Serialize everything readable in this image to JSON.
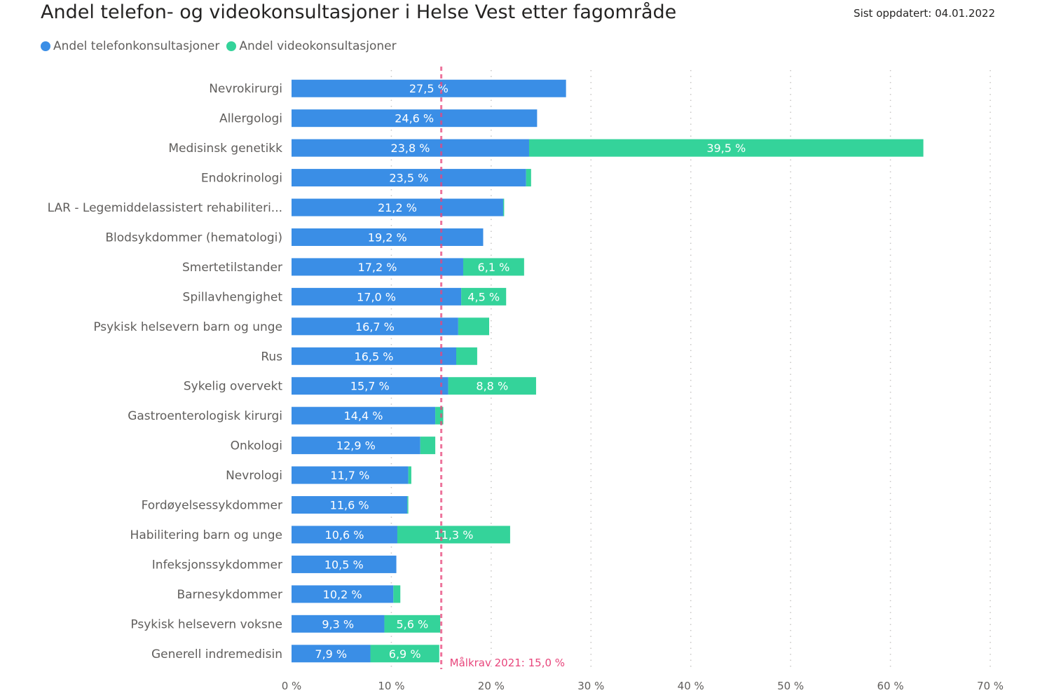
{
  "header": {
    "title": "Andel telefon- og videokonsultasjoner i Helse Vest etter fagområde",
    "updated": "Sist oppdatert: 04.01.2022"
  },
  "colors": {
    "telefon": "#3a8ee6",
    "video": "#34d39a",
    "target": "#e8467c",
    "grid": "#c8c6c4"
  },
  "chart_data": {
    "type": "bar",
    "orientation": "horizontal",
    "stacked": true,
    "title": "Andel telefon- og videokonsultasjoner i Helse Vest etter fagområde",
    "legend_position": "top-left",
    "categories": [
      "Nevrokirurgi",
      "Allergologi",
      "Medisinsk genetikk",
      "Endokrinologi",
      "LAR - Legemiddelassistert rehabiliteri...",
      "Blodsykdommer (hematologi)",
      "Smertetilstander",
      "Spillavhengighet",
      "Psykisk helsevern barn og unge",
      "Rus",
      "Sykelig overvekt",
      "Gastroenterologisk kirurgi",
      "Onkologi",
      "Nevrologi",
      "Fordøyelsessykdommer",
      "Habilitering barn og unge",
      "Infeksjonssykdommer",
      "Barnesykdommer",
      "Psykisk helsevern voksne",
      "Generell indremedisin"
    ],
    "series": [
      {
        "name": "Andel telefonkonsultasjoner",
        "values": [
          27.5,
          24.6,
          23.8,
          23.5,
          21.2,
          19.2,
          17.2,
          17.0,
          16.7,
          16.5,
          15.7,
          14.4,
          12.9,
          11.7,
          11.6,
          10.6,
          10.5,
          10.2,
          9.3,
          7.9
        ],
        "labels": [
          "27,5 %",
          "24,6 %",
          "23,8 %",
          "23,5 %",
          "21,2 %",
          "19,2 %",
          "17,2 %",
          "17,0 %",
          "16,7 %",
          "16,5 %",
          "15,7 %",
          "14,4 %",
          "12,9 %",
          "11,7 %",
          "11,6 %",
          "10,6 %",
          "10,5 %",
          "10,2 %",
          "9,3 %",
          "7,9 %"
        ]
      },
      {
        "name": "Andel videokonsultasjoner",
        "values": [
          0,
          0,
          39.5,
          0.5,
          0.1,
          0,
          6.1,
          4.5,
          3.1,
          2.1,
          8.8,
          0.8,
          1.5,
          0.3,
          0.1,
          11.3,
          0,
          0.7,
          5.6,
          6.9
        ],
        "labels": [
          "",
          "",
          "39,5 %",
          "",
          "",
          "",
          "6,1 %",
          "4,5 %",
          "",
          "",
          "8,8 %",
          "",
          "",
          "",
          "",
          "11,3 %",
          "",
          "",
          "5,6 %",
          "6,9 %"
        ]
      }
    ],
    "x_ticks": [
      0,
      10,
      20,
      30,
      40,
      50,
      60,
      70
    ],
    "x_tick_labels": [
      "0 %",
      "10 %",
      "20 %",
      "30 %",
      "40 %",
      "50 %",
      "60 %",
      "70 %"
    ],
    "xlim": [
      0,
      70
    ],
    "grid": true,
    "target": {
      "value": 15.0,
      "label": "Målkrav 2021: 15,0 %"
    }
  }
}
